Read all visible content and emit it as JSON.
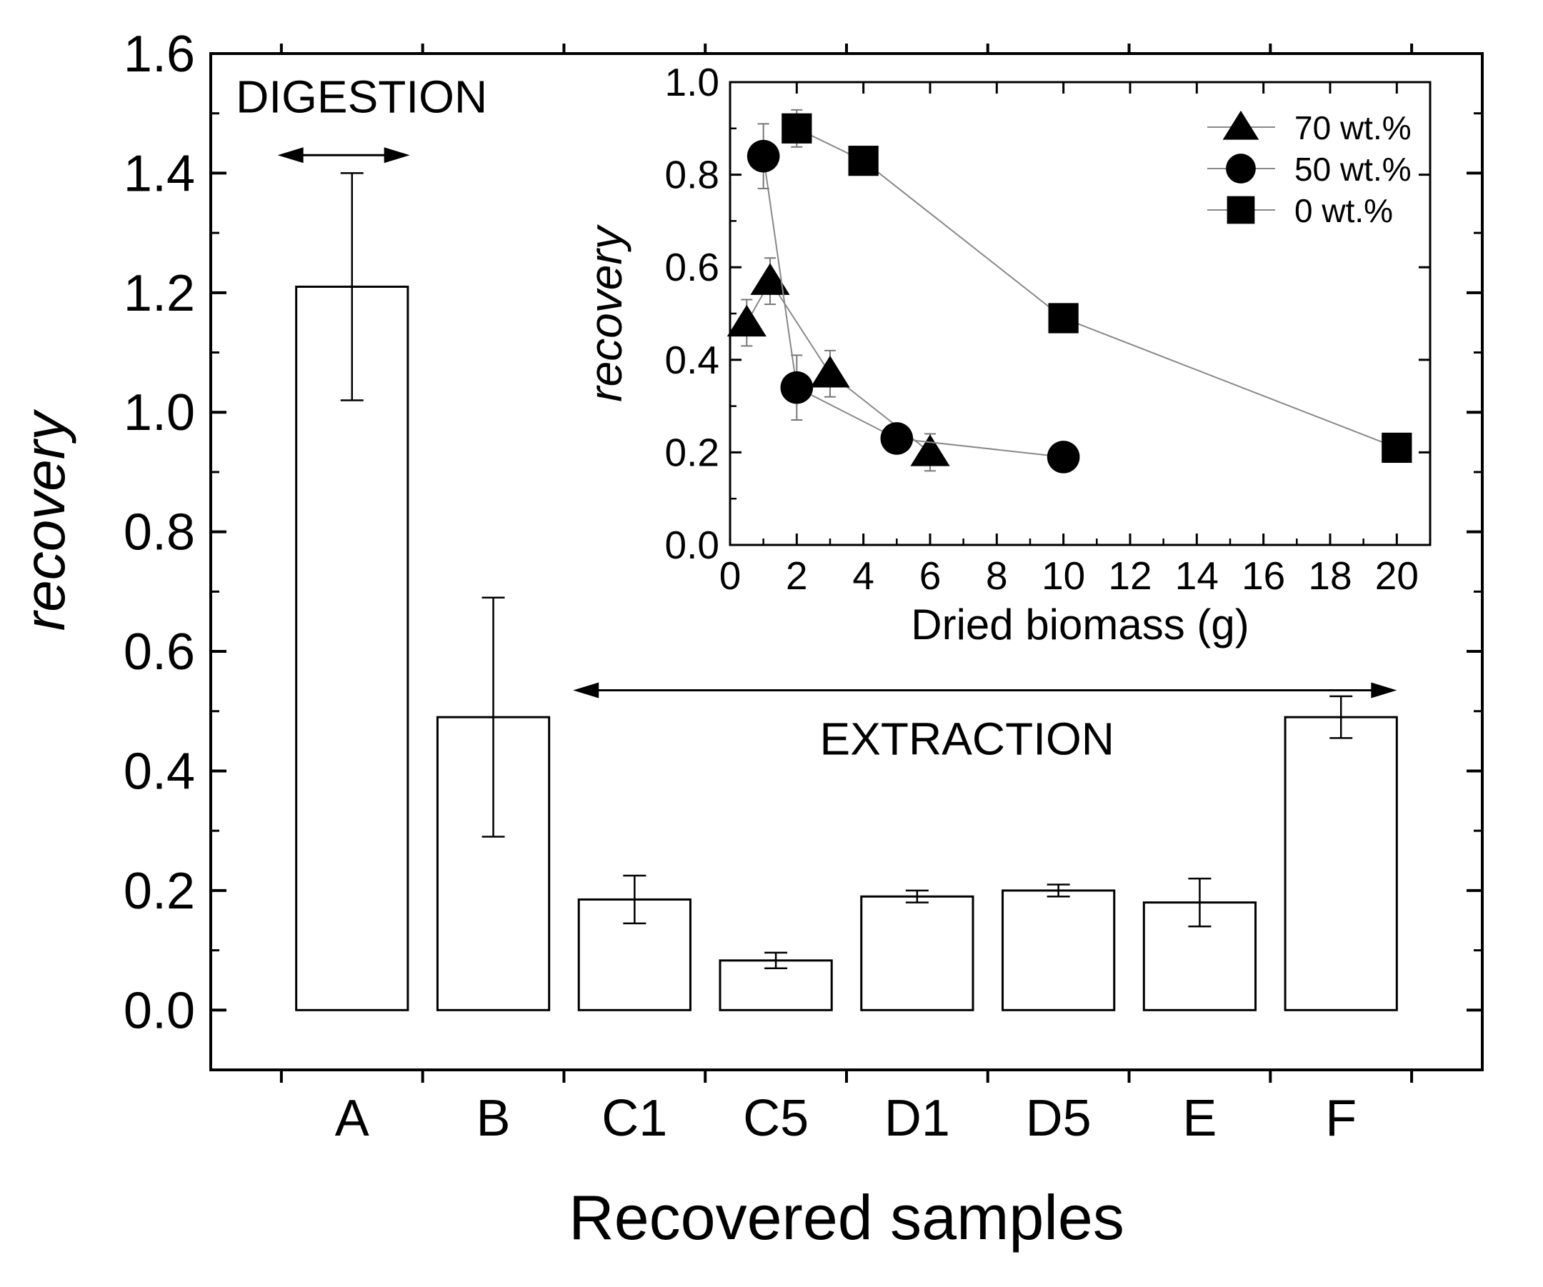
{
  "chart_data": [
    {
      "type": "bar",
      "title": "",
      "xlabel": "Recovered samples",
      "ylabel": "recovery",
      "ylim": [
        -0.1,
        1.6
      ],
      "yticks": [
        "0.0",
        "0.2",
        "0.4",
        "0.6",
        "0.8",
        "1.0",
        "1.2",
        "1.4",
        "1.6"
      ],
      "categories": [
        "A",
        "B",
        "C1",
        "C5",
        "D1",
        "D5",
        "E",
        "F"
      ],
      "values": [
        1.21,
        0.49,
        0.185,
        0.083,
        0.19,
        0.2,
        0.18,
        0.49
      ],
      "errors": [
        0.19,
        0.2,
        0.04,
        0.013,
        0.01,
        0.01,
        0.04,
        0.035
      ],
      "annotations": [
        {
          "text": "DIGESTION",
          "from_category": "A",
          "to_category": "B",
          "direction": "both",
          "y": 1.43
        },
        {
          "text": "EXTRACTION",
          "from_category": "C1",
          "to_category": "F",
          "direction": "both",
          "y": 0.535
        }
      ]
    },
    {
      "type": "line",
      "title": "",
      "xlabel": "Dried biomass (g)",
      "ylabel": "recovery",
      "xlim": [
        0,
        21
      ],
      "ylim": [
        0,
        1.0
      ],
      "xticks": [
        "0",
        "2",
        "4",
        "6",
        "8",
        "10",
        "12",
        "14",
        "16",
        "18",
        "20"
      ],
      "yticks": [
        "0.0",
        "0.2",
        "0.4",
        "0.6",
        "0.8",
        "1.0"
      ],
      "legend_position": "top-right",
      "series": [
        {
          "name": "70 wt.%",
          "marker": "triangle",
          "x": [
            0.5,
            1.2,
            3,
            6
          ],
          "y": [
            0.48,
            0.57,
            0.37,
            0.2
          ],
          "errors": [
            0.05,
            0.05,
            0.05,
            0.04
          ]
        },
        {
          "name": "50 wt.%",
          "marker": "circle",
          "x": [
            1,
            2,
            5,
            10
          ],
          "y": [
            0.84,
            0.34,
            0.23,
            0.19
          ],
          "errors": [
            0.07,
            0.07,
            0.02,
            0.02
          ]
        },
        {
          "name": "0 wt.%",
          "marker": "square",
          "x": [
            2,
            4,
            10,
            20
          ],
          "y": [
            0.9,
            0.83,
            0.49,
            0.21
          ],
          "errors": [
            0.04,
            0.02,
            0.02,
            0.02
          ]
        }
      ]
    }
  ]
}
